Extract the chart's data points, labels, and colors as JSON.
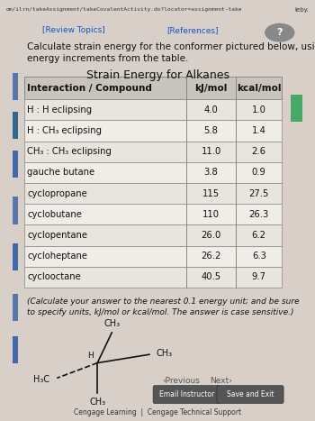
{
  "browser_bar_text": "om/ilrn/takeAssignment/takeCovalentActivity.do?locator=assignment-take",
  "browser_bar_right": "leby.",
  "tab_left": "[Review Topics]",
  "tab_right": "[References]",
  "intro_text": "Calculate strain energy for the conformer pictured below, using strain\nenergy increments from the table.",
  "table_title": "Strain Energy for Alkanes",
  "table_headers": [
    "Interaction / Compound",
    "kJ/mol",
    "kcal/mol"
  ],
  "table_rows": [
    [
      "H : H eclipsing",
      "4.0",
      "1.0"
    ],
    [
      "H : CH₃ eclipsing",
      "5.8",
      "1.4"
    ],
    [
      "CH₃ : CH₃ eclipsing",
      "11.0",
      "2.6"
    ],
    [
      "gauche butane",
      "3.8",
      "0.9"
    ],
    [
      "cyclopropane",
      "115",
      "27.5"
    ],
    [
      "cyclobutane",
      "110",
      "26.3"
    ],
    [
      "cyclopentane",
      "26.0",
      "6.2"
    ],
    [
      "cycloheptane",
      "26.2",
      "6.3"
    ],
    [
      "cyclooctane",
      "40.5",
      "9.7"
    ]
  ],
  "instruction_text": "(Calculate your answer to the nearest 0.1 energy unit; and be sure\nto specify units, kJ/mol or kcal/mol. The answer is case sensitive.)",
  "footer_left": "Cengage Learning  |  Cengage Technical Support",
  "button1": "Email Instructor",
  "button2": "Save and Exit",
  "nav_prev": "‹Previous",
  "nav_next": "Next›",
  "bg_color": "#d8d0c8",
  "panel_color": "#f0ede8",
  "table_header_bg": "#c8c4bc",
  "table_row_even": "#e8e4de",
  "table_row_odd": "#f0ede8",
  "table_border": "#888880",
  "title_fontsize": 9,
  "body_fontsize": 7.5,
  "small_fontsize": 6.5
}
